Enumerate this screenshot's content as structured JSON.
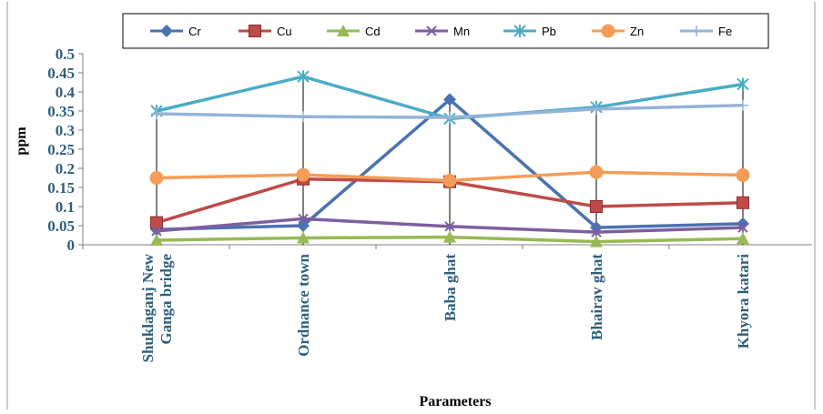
{
  "chart_data": {
    "type": "line",
    "categories": [
      "Shuklaganj New Ganga bridge",
      "Ordnance town",
      "Baba ghat",
      "Bhairav ghat",
      "Khyora katari"
    ],
    "category_lines": [
      [
        "Shuklaganj New",
        "Ganga bridge"
      ],
      [
        "Ordnance town"
      ],
      [
        "Baba ghat"
      ],
      [
        "Bhairav ghat"
      ],
      [
        "Khyora katari"
      ]
    ],
    "xlabel": "Parameters",
    "ylabel": "ppm",
    "ylim": [
      0,
      0.5
    ],
    "yticks": [
      "0",
      "0.05",
      "0.1",
      "0.15",
      "0.2",
      "0.25",
      "0.3",
      "0.35",
      "0.4",
      "0.45",
      "0.5"
    ],
    "grid": false,
    "drop_lines": true,
    "legend_position": "top",
    "series": [
      {
        "name": "Cr",
        "color": "#4a72b0",
        "marker": "diamond",
        "values": [
          0.04,
          0.05,
          0.38,
          0.045,
          0.055
        ]
      },
      {
        "name": "Cu",
        "color": "#be4b48",
        "marker": "square",
        "values": [
          0.058,
          0.172,
          0.165,
          0.1,
          0.11
        ]
      },
      {
        "name": "Cd",
        "color": "#98b954",
        "marker": "triangle",
        "values": [
          0.012,
          0.018,
          0.02,
          0.008,
          0.016
        ]
      },
      {
        "name": "Mn",
        "color": "#7d5fa0",
        "marker": "x",
        "values": [
          0.036,
          0.068,
          0.048,
          0.033,
          0.045
        ]
      },
      {
        "name": "Pb",
        "color": "#4bacc6",
        "marker": "star",
        "values": [
          0.35,
          0.44,
          0.33,
          0.36,
          0.42
        ]
      },
      {
        "name": "Zn",
        "color": "#f59d56",
        "marker": "circle",
        "values": [
          0.175,
          0.183,
          0.168,
          0.19,
          0.182
        ]
      },
      {
        "name": "Fe",
        "color": "#95b3d7",
        "marker": "plus",
        "values": [
          0.343,
          0.335,
          0.333,
          0.355,
          0.365
        ]
      }
    ]
  }
}
